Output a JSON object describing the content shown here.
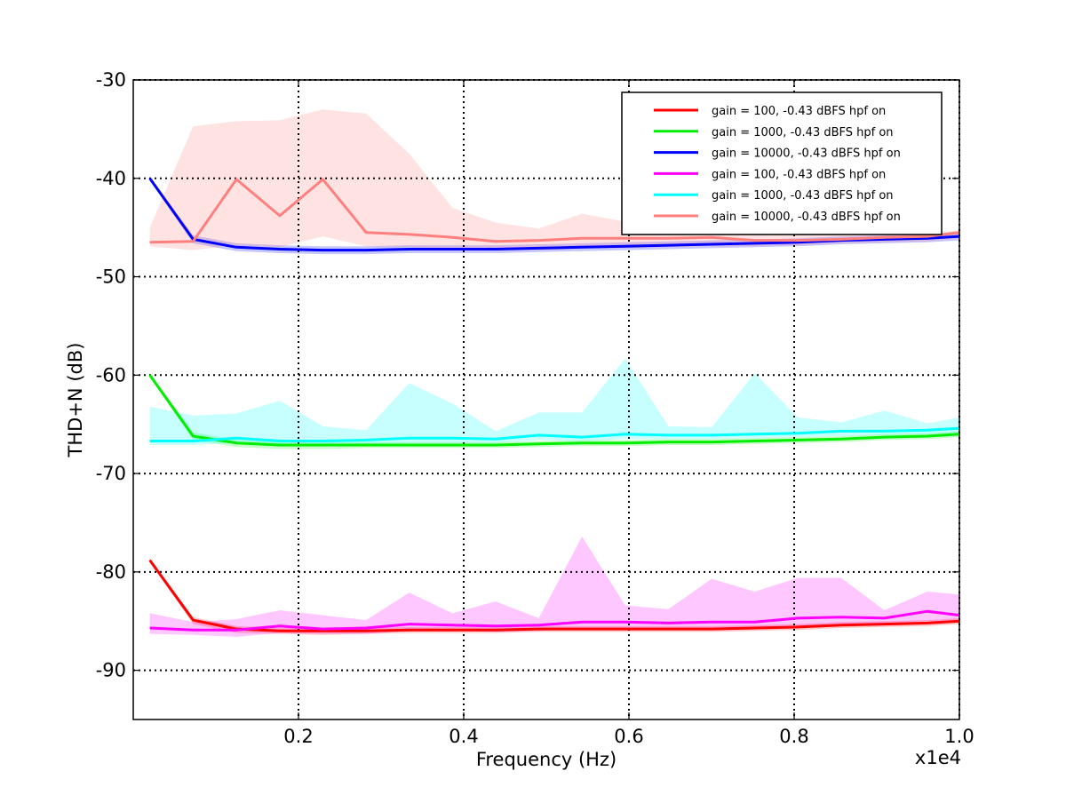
{
  "chart_data": {
    "type": "line",
    "title": "",
    "xlabel": "Frequency (Hz)",
    "ylabel": "THD+N (dB)",
    "x_offset_label": "x1e4",
    "xlim": [
      0.0,
      1.0
    ],
    "ylim": [
      -95,
      -30
    ],
    "x_ticks": [
      0.2,
      0.4,
      0.6,
      0.8,
      1.0
    ],
    "x_tick_labels": [
      "0.2",
      "0.4",
      "0.6",
      "0.8",
      "1.0"
    ],
    "y_ticks": [
      -90,
      -80,
      -70,
      -60,
      -50,
      -40,
      -30
    ],
    "y_tick_labels": [
      "-90",
      "-80",
      "-70",
      "-60",
      "-50",
      "-40",
      "-30"
    ],
    "grid": true,
    "grid_style": "dotted",
    "legend_position": "top-right",
    "x": [
      0.02,
      0.0725,
      0.1248,
      0.1773,
      0.2295,
      0.2818,
      0.3341,
      0.3864,
      0.4386,
      0.4909,
      0.5432,
      0.5955,
      0.6477,
      0.7,
      0.7523,
      0.8045,
      0.8568,
      0.9091,
      0.9614,
      1.0
    ],
    "series": [
      {
        "name": "gain = 100, -0.43 dBFS  hpf on",
        "color": "#ff0000",
        "values": [
          -78.8,
          -84.9,
          -85.8,
          -86.0,
          -86.0,
          -86.0,
          -85.9,
          -85.9,
          -85.9,
          -85.8,
          -85.8,
          -85.8,
          -85.8,
          -85.8,
          -85.7,
          -85.6,
          -85.4,
          -85.3,
          -85.2,
          -85.0
        ],
        "band_low": [
          -79.0,
          -85.3,
          -86.2,
          -86.3,
          -86.4,
          -86.3,
          -86.2,
          -86.2,
          -86.2,
          -86.1,
          -86.1,
          -86.1,
          -86.1,
          -86.1,
          -86.0,
          -85.9,
          -85.7,
          -85.6,
          -85.5,
          -85.3
        ],
        "band_high": [
          -78.6,
          -84.6,
          -85.5,
          -85.7,
          -85.7,
          -85.7,
          -85.6,
          -85.6,
          -85.6,
          -85.5,
          -85.5,
          -85.5,
          -85.5,
          -85.5,
          -85.4,
          -85.3,
          -85.1,
          -85.0,
          -84.9,
          -84.7
        ]
      },
      {
        "name": "gain = 1000, -0.43 dBFS  hpf on",
        "color": "#00ee00",
        "values": [
          -60.0,
          -66.2,
          -66.9,
          -67.1,
          -67.1,
          -67.1,
          -67.1,
          -67.1,
          -67.1,
          -67.0,
          -66.9,
          -66.9,
          -66.8,
          -66.8,
          -66.7,
          -66.6,
          -66.5,
          -66.3,
          -66.2,
          -66.0
        ],
        "band_low": [
          -60.2,
          -66.6,
          -67.3,
          -67.5,
          -67.5,
          -67.4,
          -67.4,
          -67.4,
          -67.4,
          -67.3,
          -67.2,
          -67.2,
          -67.1,
          -67.1,
          -67.0,
          -66.9,
          -66.8,
          -66.6,
          -66.5,
          -66.3
        ],
        "band_high": [
          -59.8,
          -65.8,
          -66.6,
          -66.8,
          -66.8,
          -66.8,
          -66.8,
          -66.8,
          -66.8,
          -66.7,
          -66.6,
          -66.6,
          -66.5,
          -66.5,
          -66.4,
          -66.3,
          -66.2,
          -66.0,
          -65.9,
          -65.7
        ]
      },
      {
        "name": "gain = 10000, -0.43 dBFS  hpf on",
        "color": "#0000ff",
        "values": [
          -40.0,
          -46.2,
          -47.0,
          -47.2,
          -47.3,
          -47.3,
          -47.2,
          -47.2,
          -47.2,
          -47.1,
          -47.0,
          -46.9,
          -46.8,
          -46.7,
          -46.6,
          -46.5,
          -46.3,
          -46.2,
          -46.1,
          -45.9
        ],
        "band_low": [
          -40.2,
          -46.6,
          -47.4,
          -47.6,
          -47.7,
          -47.7,
          -47.6,
          -47.6,
          -47.6,
          -47.5,
          -47.4,
          -47.3,
          -47.2,
          -47.1,
          -47.0,
          -46.9,
          -46.7,
          -46.6,
          -46.5,
          -46.3
        ],
        "band_high": [
          -39.8,
          -45.8,
          -46.6,
          -46.8,
          -46.9,
          -46.9,
          -46.8,
          -46.8,
          -46.8,
          -46.7,
          -46.6,
          -46.5,
          -46.4,
          -46.3,
          -46.2,
          -46.1,
          -45.9,
          -45.8,
          -45.7,
          -45.5
        ]
      },
      {
        "name": "gain = 100, -0.43 dBFS  hpf on",
        "color": "#ff00ff",
        "values": [
          -85.7,
          -85.9,
          -85.9,
          -85.5,
          -85.8,
          -85.7,
          -85.3,
          -85.4,
          -85.5,
          -85.4,
          -85.1,
          -85.1,
          -85.2,
          -85.1,
          -85.1,
          -84.7,
          -84.6,
          -84.7,
          -84.0,
          -84.4
        ],
        "band_low": [
          -86.3,
          -86.4,
          -86.6,
          -86.2,
          -86.3,
          -86.3,
          -86.0,
          -86.0,
          -86.1,
          -86.0,
          -85.8,
          -85.8,
          -85.8,
          -85.8,
          -85.7,
          -85.5,
          -85.4,
          -85.4,
          -85.0,
          -85.2
        ],
        "band_high": [
          -84.2,
          -85.1,
          -84.8,
          -83.9,
          -84.4,
          -84.9,
          -82.1,
          -84.2,
          -83.0,
          -84.7,
          -76.4,
          -83.4,
          -83.8,
          -80.7,
          -82.0,
          -80.6,
          -80.6,
          -83.9,
          -82.0,
          -82.3
        ]
      },
      {
        "name": "gain = 1000, -0.43 dBFS  hpf on",
        "color": "#00ffff",
        "values": [
          -66.7,
          -66.7,
          -66.4,
          -66.7,
          -66.7,
          -66.6,
          -66.4,
          -66.4,
          -66.5,
          -66.1,
          -66.3,
          -66.0,
          -66.1,
          -66.1,
          -66.0,
          -65.9,
          -65.7,
          -65.7,
          -65.6,
          -65.4
        ],
        "band_low": [
          -67.1,
          -67.1,
          -66.9,
          -67.1,
          -67.1,
          -67.0,
          -66.9,
          -66.9,
          -66.9,
          -66.6,
          -66.7,
          -66.5,
          -66.5,
          -66.5,
          -66.4,
          -66.3,
          -66.2,
          -66.1,
          -66.0,
          -65.9
        ],
        "band_high": [
          -63.2,
          -64.1,
          -63.9,
          -62.6,
          -65.2,
          -65.6,
          -60.8,
          -62.9,
          -65.7,
          -63.8,
          -63.8,
          -58.3,
          -65.2,
          -65.3,
          -59.8,
          -64.3,
          -64.8,
          -63.6,
          -64.9,
          -64.3
        ]
      },
      {
        "name": "gain = 10000, -0.43 dBFS  hpf on",
        "color": "#ff7f7f",
        "values": [
          -46.5,
          -46.4,
          -40.1,
          -43.8,
          -40.1,
          -45.5,
          -45.7,
          -46.0,
          -46.4,
          -46.3,
          -46.1,
          -46.1,
          -46.1,
          -46.0,
          -46.3,
          -46.3,
          -46.2,
          -46.0,
          -45.9,
          -45.5
        ],
        "band_low": [
          -46.9,
          -47.3,
          -46.8,
          -47.0,
          -45.9,
          -46.9,
          -47.0,
          -47.3,
          -47.3,
          -47.3,
          -47.1,
          -47.1,
          -47.0,
          -46.9,
          -46.9,
          -46.8,
          -46.6,
          -46.5,
          -46.4,
          -46.1
        ],
        "band_high": [
          -45.0,
          -34.7,
          -34.2,
          -34.1,
          -33.0,
          -33.4,
          -37.5,
          -43.0,
          -44.5,
          -45.1,
          -43.6,
          -44.4,
          -44.8,
          -45.3,
          -45.4,
          -45.6,
          -45.5,
          -45.5,
          -45.5,
          -45.3
        ]
      }
    ]
  }
}
